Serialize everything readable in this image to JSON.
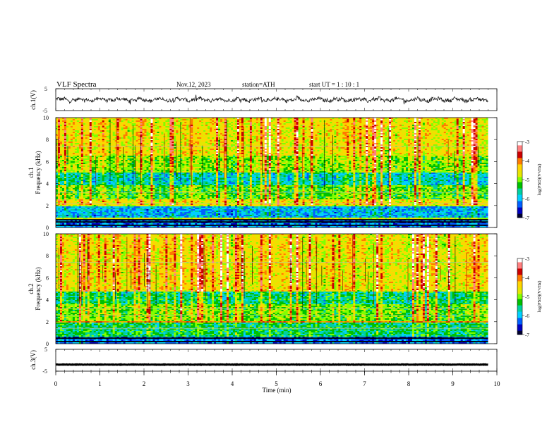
{
  "header": {
    "title": "VLF  Spectra",
    "date": "Nov.12, 2023",
    "station": "station=ATH",
    "start": "start  UT  =    1  : 10 : 1"
  },
  "colorbar": {
    "label": "log(PSD)(V²/Hz)",
    "ticks": [
      "-3",
      "-4",
      "-5",
      "-6",
      "-7"
    ],
    "colors": [
      "#ffffff",
      "#ff8080",
      "#cc0000",
      "#ff7a00",
      "#ffd500",
      "#e6e600",
      "#80ff00",
      "#00c000",
      "#00d0a0",
      "#00d0ff",
      "#0060ff",
      "#0000c0",
      "#000030"
    ]
  },
  "chart_data": [
    {
      "type": "line",
      "panel": "ch1-waveform",
      "ylabel": "ch.1(V)",
      "ylim": [
        -5,
        5
      ],
      "yticks": [
        "5",
        "-5"
      ],
      "xlim": [
        0,
        10
      ],
      "baseline": 0,
      "noise_amplitude": 0.8
    },
    {
      "type": "heatmap",
      "panel": "ch1-spectrogram",
      "ylabel_top": "ch.1",
      "ylabel": "Frequency  (kHz)",
      "ylim": [
        0,
        10
      ],
      "yticks": [
        "0",
        "2",
        "4",
        "6",
        "8",
        "10"
      ],
      "xlim": [
        0,
        10
      ],
      "data_end_min": 9.8,
      "clim": [
        -7,
        -3
      ]
    },
    {
      "type": "heatmap",
      "panel": "ch2-spectrogram",
      "ylabel_top": "ch.2",
      "ylabel": "Frequency  (kHz)",
      "ylim": [
        0,
        10
      ],
      "yticks": [
        "0",
        "2",
        "4",
        "6",
        "8",
        "10"
      ],
      "xlim": [
        0,
        10
      ],
      "data_end_min": 9.8,
      "clim": [
        -7,
        -3
      ]
    },
    {
      "type": "line",
      "panel": "ch3-waveform",
      "ylabel": "ch.3(V)",
      "ylim": [
        -5,
        5
      ],
      "yticks": [
        "5",
        "-5"
      ],
      "xlim": [
        0,
        10
      ],
      "baseline": -2,
      "noise_amplitude": 0.1
    }
  ],
  "xaxis": {
    "label": "Time  (min)",
    "ticks": [
      "0",
      "1",
      "2",
      "3",
      "4",
      "5",
      "6",
      "7",
      "8",
      "9",
      "10"
    ]
  }
}
